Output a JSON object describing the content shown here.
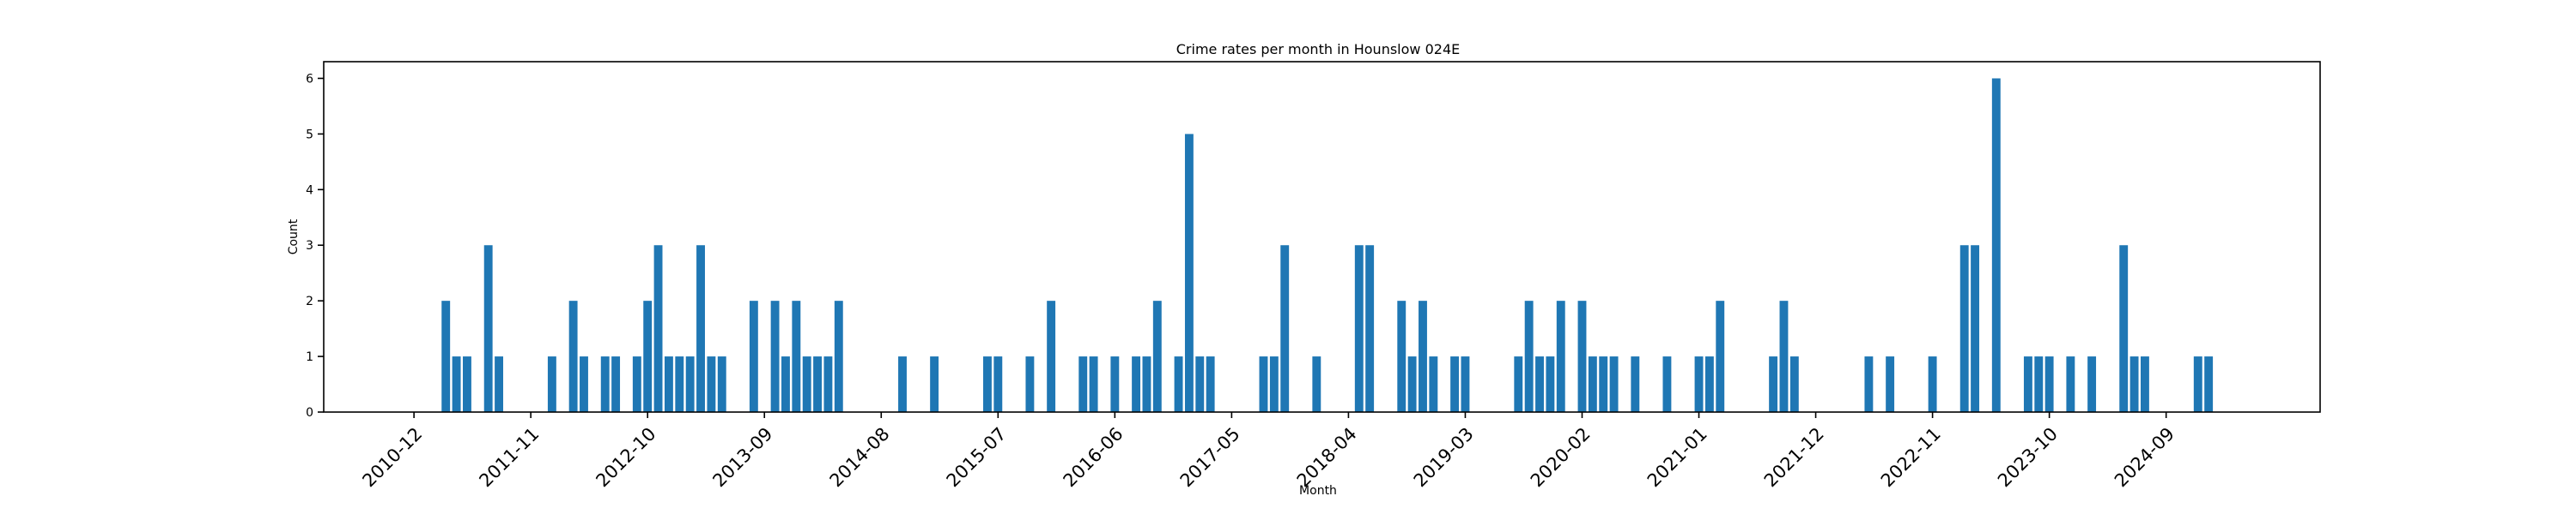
{
  "chart_data": {
    "type": "bar",
    "title": "Crime rates per month in Hounslow 024E",
    "xlabel": "Month",
    "ylabel": "Count",
    "ylim": [
      0,
      6.3
    ],
    "yticks": [
      0,
      1,
      2,
      3,
      4,
      5,
      6
    ],
    "xtick_labels": [
      "2010-12",
      "2011-11",
      "2012-10",
      "2013-09",
      "2014-08",
      "2015-07",
      "2016-06",
      "2017-05",
      "2018-04",
      "2019-03",
      "2020-02",
      "2021-01",
      "2021-12",
      "2022-11",
      "2023-10",
      "2024-09"
    ],
    "xtick_months": [
      0,
      11,
      22,
      33,
      44,
      55,
      66,
      77,
      88,
      99,
      110,
      121,
      132,
      143,
      154,
      165
    ],
    "x_range_months": [
      -8.5,
      179.5
    ],
    "bar_width_months": 0.8,
    "bar_color": "#1f77b4",
    "bars": [
      {
        "month": 3,
        "value": 2
      },
      {
        "month": 4,
        "value": 1
      },
      {
        "month": 5,
        "value": 1
      },
      {
        "month": 7,
        "value": 3
      },
      {
        "month": 8,
        "value": 1
      },
      {
        "month": 13,
        "value": 1
      },
      {
        "month": 15,
        "value": 2
      },
      {
        "month": 16,
        "value": 1
      },
      {
        "month": 18,
        "value": 1
      },
      {
        "month": 19,
        "value": 1
      },
      {
        "month": 21,
        "value": 1
      },
      {
        "month": 22,
        "value": 2
      },
      {
        "month": 23,
        "value": 3
      },
      {
        "month": 24,
        "value": 1
      },
      {
        "month": 25,
        "value": 1
      },
      {
        "month": 26,
        "value": 1
      },
      {
        "month": 27,
        "value": 3
      },
      {
        "month": 28,
        "value": 1
      },
      {
        "month": 29,
        "value": 1
      },
      {
        "month": 32,
        "value": 2
      },
      {
        "month": 34,
        "value": 2
      },
      {
        "month": 35,
        "value": 1
      },
      {
        "month": 36,
        "value": 2
      },
      {
        "month": 37,
        "value": 1
      },
      {
        "month": 38,
        "value": 1
      },
      {
        "month": 39,
        "value": 1
      },
      {
        "month": 40,
        "value": 2
      },
      {
        "month": 46,
        "value": 1
      },
      {
        "month": 49,
        "value": 1
      },
      {
        "month": 54,
        "value": 1
      },
      {
        "month": 55,
        "value": 1
      },
      {
        "month": 58,
        "value": 1
      },
      {
        "month": 60,
        "value": 2
      },
      {
        "month": 63,
        "value": 1
      },
      {
        "month": 64,
        "value": 1
      },
      {
        "month": 66,
        "value": 1
      },
      {
        "month": 68,
        "value": 1
      },
      {
        "month": 69,
        "value": 1
      },
      {
        "month": 70,
        "value": 2
      },
      {
        "month": 72,
        "value": 1
      },
      {
        "month": 73,
        "value": 5
      },
      {
        "month": 74,
        "value": 1
      },
      {
        "month": 75,
        "value": 1
      },
      {
        "month": 80,
        "value": 1
      },
      {
        "month": 81,
        "value": 1
      },
      {
        "month": 82,
        "value": 3
      },
      {
        "month": 85,
        "value": 1
      },
      {
        "month": 89,
        "value": 3
      },
      {
        "month": 90,
        "value": 3
      },
      {
        "month": 93,
        "value": 2
      },
      {
        "month": 94,
        "value": 1
      },
      {
        "month": 95,
        "value": 2
      },
      {
        "month": 96,
        "value": 1
      },
      {
        "month": 98,
        "value": 1
      },
      {
        "month": 99,
        "value": 1
      },
      {
        "month": 104,
        "value": 1
      },
      {
        "month": 105,
        "value": 2
      },
      {
        "month": 106,
        "value": 1
      },
      {
        "month": 107,
        "value": 1
      },
      {
        "month": 108,
        "value": 2
      },
      {
        "month": 110,
        "value": 2
      },
      {
        "month": 111,
        "value": 1
      },
      {
        "month": 112,
        "value": 1
      },
      {
        "month": 113,
        "value": 1
      },
      {
        "month": 115,
        "value": 1
      },
      {
        "month": 118,
        "value": 1
      },
      {
        "month": 121,
        "value": 1
      },
      {
        "month": 122,
        "value": 1
      },
      {
        "month": 123,
        "value": 2
      },
      {
        "month": 128,
        "value": 1
      },
      {
        "month": 129,
        "value": 2
      },
      {
        "month": 130,
        "value": 1
      },
      {
        "month": 137,
        "value": 1
      },
      {
        "month": 139,
        "value": 1
      },
      {
        "month": 143,
        "value": 1
      },
      {
        "month": 146,
        "value": 3
      },
      {
        "month": 147,
        "value": 3
      },
      {
        "month": 149,
        "value": 6
      },
      {
        "month": 152,
        "value": 1
      },
      {
        "month": 153,
        "value": 1
      },
      {
        "month": 154,
        "value": 1
      },
      {
        "month": 156,
        "value": 1
      },
      {
        "month": 158,
        "value": 1
      },
      {
        "month": 161,
        "value": 3
      },
      {
        "month": 162,
        "value": 1
      },
      {
        "month": 163,
        "value": 1
      },
      {
        "month": 168,
        "value": 1
      },
      {
        "month": 169,
        "value": 1
      }
    ]
  }
}
